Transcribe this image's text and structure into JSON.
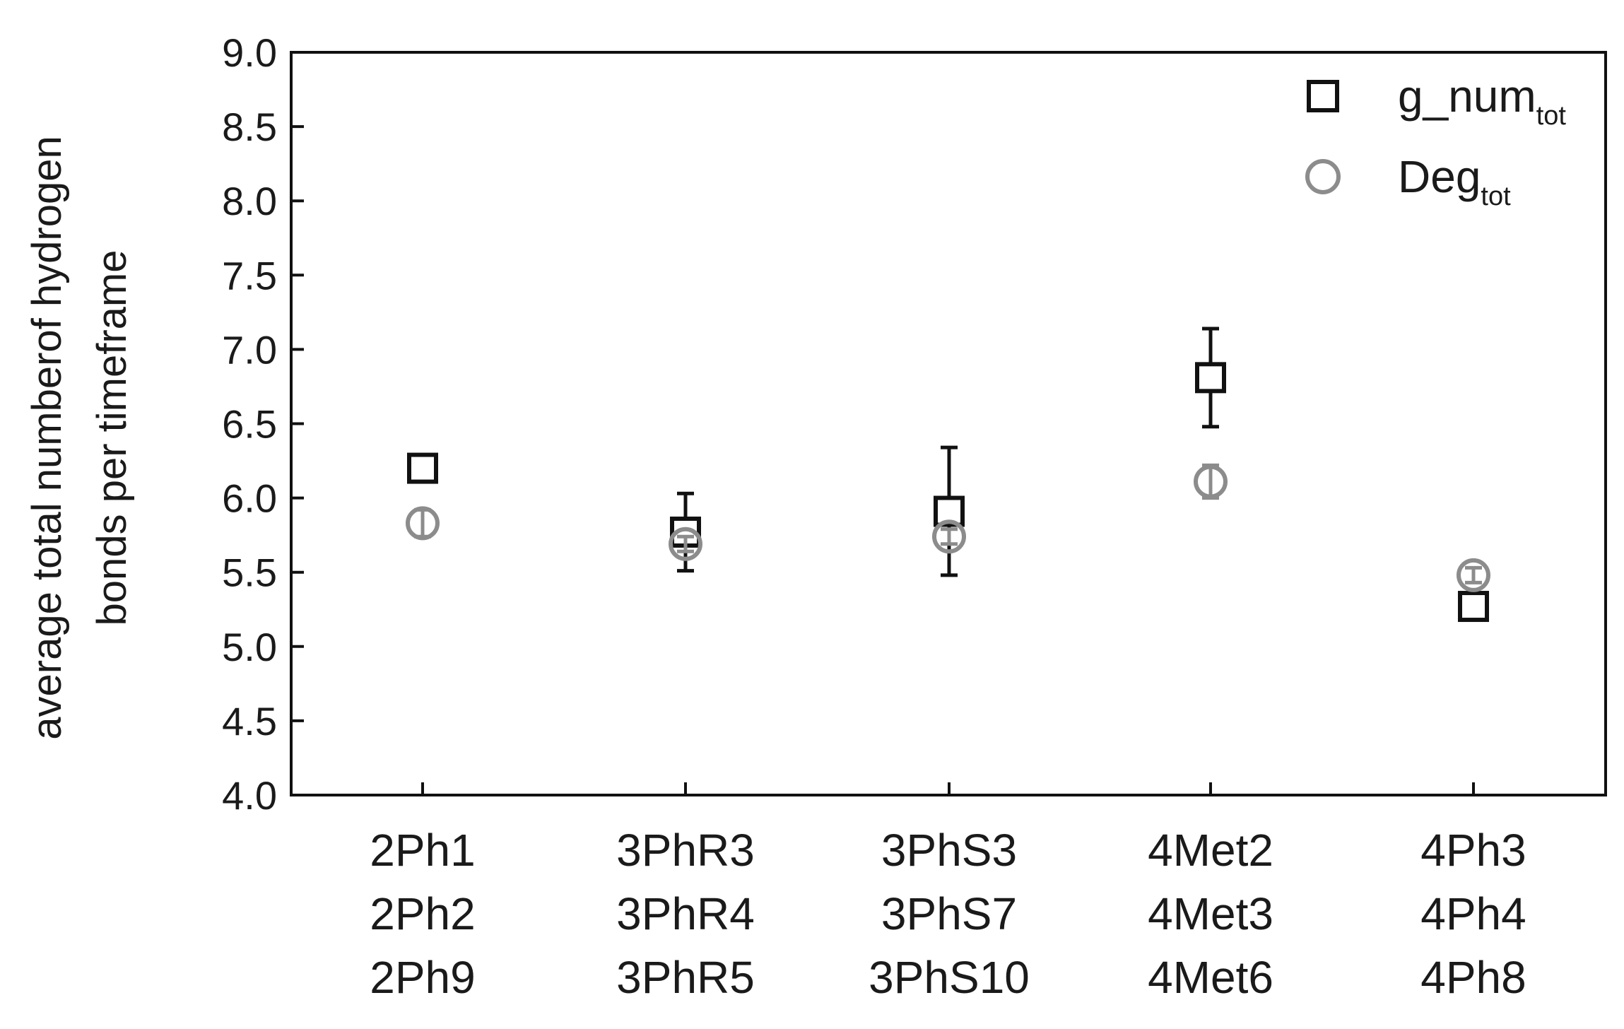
{
  "chart_data": {
    "type": "scatter",
    "categories": [
      [
        "2Ph1",
        "2Ph2",
        "2Ph9"
      ],
      [
        "3PhR3",
        "3PhR4",
        "3PhR5"
      ],
      [
        "3PhS3",
        "3PhS7",
        "3PhS10"
      ],
      [
        "4Met2",
        "4Met3",
        "4Met6"
      ],
      [
        "4Ph3",
        "4Ph4",
        "4Ph8"
      ]
    ],
    "ylabel_lines": [
      "average total numberof hydrogen",
      "bonds per timeframe"
    ],
    "xlabel": "",
    "ylim": [
      4.0,
      9.0
    ],
    "yticks": [
      "4.0",
      "4.5",
      "5.0",
      "5.5",
      "6.0",
      "6.5",
      "7.0",
      "7.5",
      "8.0",
      "8.5",
      "9.0"
    ],
    "grid": false,
    "legend_position": "top-right",
    "series": [
      {
        "name_main": "g_num",
        "name_sub": "tot",
        "marker": "square",
        "color": "#111111",
        "values": [
          6.2,
          5.77,
          5.91,
          6.81,
          5.27
        ],
        "errors": [
          0.07,
          0.26,
          0.43,
          0.33,
          0.08
        ]
      },
      {
        "name_main": "Deg",
        "name_sub": "tot",
        "marker": "circle",
        "color": "#8c8c8c",
        "values": [
          5.83,
          5.69,
          5.74,
          6.11,
          5.48
        ],
        "errors": [
          0.09,
          0.05,
          0.05,
          0.11,
          0.05
        ]
      }
    ]
  }
}
